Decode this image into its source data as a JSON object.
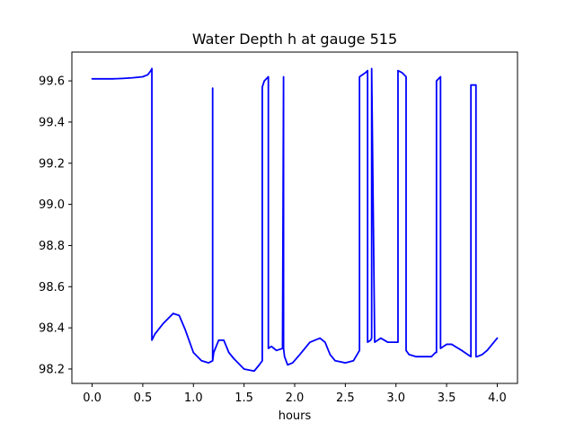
{
  "chart_data": {
    "type": "line",
    "title": "Water Depth h at gauge 515",
    "xlabel": "hours",
    "ylabel": "",
    "xlim": [
      -0.2,
      4.2
    ],
    "ylim": [
      98.13,
      99.74
    ],
    "xticks": [
      0.0,
      0.5,
      1.0,
      1.5,
      2.0,
      2.5,
      3.0,
      3.5,
      4.0
    ],
    "xtick_labels": [
      "0.0",
      "0.5",
      "1.0",
      "1.5",
      "2.0",
      "2.5",
      "3.0",
      "3.5",
      "4.0"
    ],
    "yticks": [
      98.2,
      98.4,
      98.6,
      98.8,
      99.0,
      99.2,
      99.4,
      99.6
    ],
    "ytick_labels": [
      "98.2",
      "98.4",
      "98.6",
      "98.8",
      "99.0",
      "99.2",
      "99.4",
      "99.6"
    ],
    "grid": false,
    "colors": {
      "line": "#0000ff",
      "axes": "#000000",
      "background": "#ffffff"
    },
    "series": [
      {
        "x": [
          0.0,
          0.1,
          0.2,
          0.3,
          0.4,
          0.5,
          0.55,
          0.58,
          0.59,
          0.59,
          0.62,
          0.7,
          0.8,
          0.86,
          0.92,
          1.0,
          1.08,
          1.15,
          1.19,
          1.19,
          1.19,
          1.2,
          1.25,
          1.3,
          1.35,
          1.4,
          1.5,
          1.6,
          1.65,
          1.68,
          1.68,
          1.7,
          1.74,
          1.74,
          1.77,
          1.82,
          1.88,
          1.89,
          1.89,
          1.9,
          1.93,
          1.98,
          2.05,
          2.15,
          2.25,
          2.3,
          2.35,
          2.4,
          2.5,
          2.58,
          2.64,
          2.64,
          2.7,
          2.72,
          2.72,
          2.75,
          2.76,
          2.76,
          2.79,
          2.85,
          2.92,
          3.0,
          3.02,
          3.02,
          3.06,
          3.1,
          3.1,
          3.13,
          3.2,
          3.25,
          3.35,
          3.39,
          3.4,
          3.4,
          3.44,
          3.44,
          3.5,
          3.55,
          3.65,
          3.74,
          3.74,
          3.75,
          3.79,
          3.79,
          3.8,
          3.85,
          3.9,
          4.0
        ],
        "y": [
          99.61,
          99.61,
          99.61,
          99.612,
          99.615,
          99.62,
          99.63,
          99.65,
          99.66,
          98.34,
          98.37,
          98.42,
          98.47,
          98.46,
          98.39,
          98.28,
          98.24,
          98.23,
          98.24,
          99.565,
          98.24,
          98.28,
          98.34,
          98.34,
          98.28,
          98.25,
          98.2,
          98.19,
          98.22,
          98.24,
          99.57,
          99.6,
          99.62,
          98.3,
          98.31,
          98.29,
          98.3,
          99.62,
          98.3,
          98.26,
          98.22,
          98.23,
          98.27,
          98.33,
          98.35,
          98.33,
          98.27,
          98.24,
          98.23,
          98.24,
          98.29,
          99.62,
          99.64,
          99.65,
          98.33,
          98.34,
          98.35,
          99.66,
          98.33,
          98.35,
          98.33,
          98.33,
          98.33,
          99.65,
          99.64,
          99.62,
          98.29,
          98.27,
          98.26,
          98.26,
          98.26,
          98.28,
          98.28,
          99.6,
          99.62,
          98.3,
          98.32,
          98.32,
          98.29,
          98.26,
          99.58,
          99.58,
          99.58,
          98.26,
          98.26,
          98.27,
          98.29,
          98.35
        ]
      }
    ]
  }
}
